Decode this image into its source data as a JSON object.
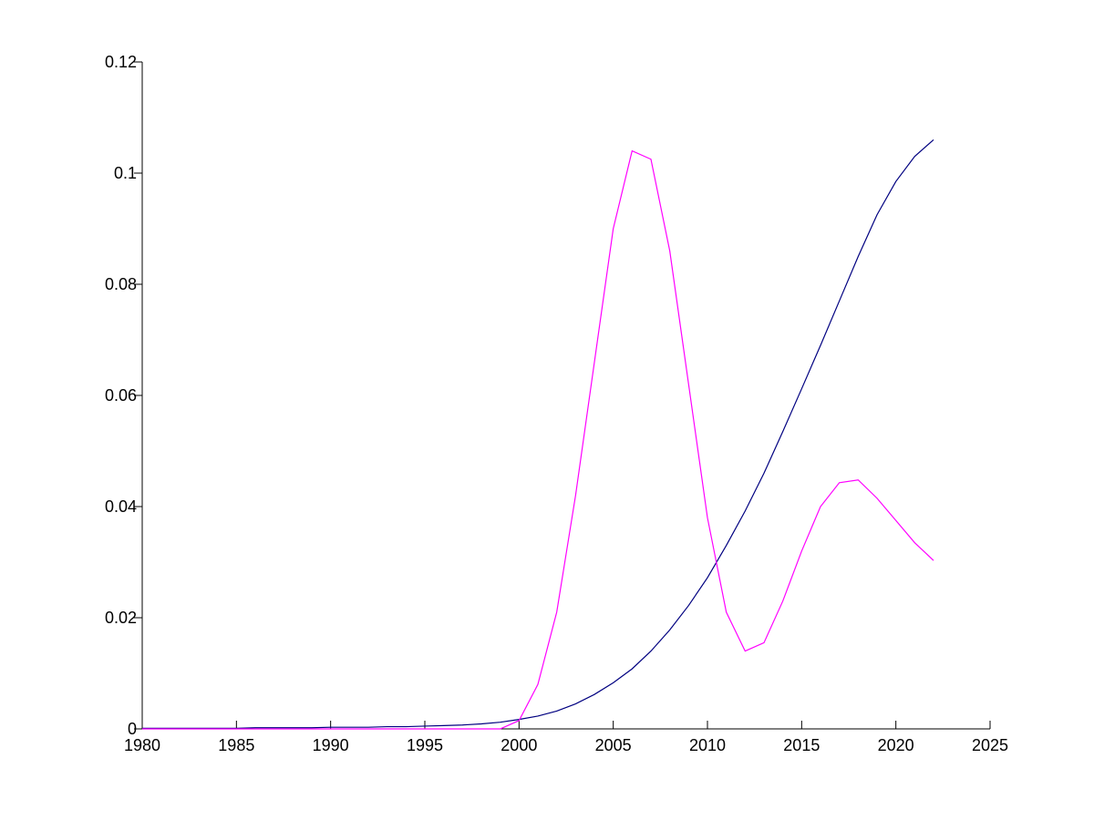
{
  "chart_data": {
    "type": "line",
    "x": [
      1980,
      1981,
      1982,
      1983,
      1984,
      1985,
      1986,
      1987,
      1988,
      1989,
      1990,
      1991,
      1992,
      1993,
      1994,
      1995,
      1996,
      1997,
      1998,
      1999,
      2000,
      2001,
      2002,
      2003,
      2004,
      2005,
      2006,
      2007,
      2008,
      2009,
      2010,
      2011,
      2012,
      2013,
      2014,
      2015,
      2016,
      2017,
      2018,
      2019,
      2020,
      2021,
      2022
    ],
    "series": [
      {
        "color": "#000080",
        "values": [
          0.0001,
          0.0001,
          0.0001,
          0.0001,
          0.0001,
          0.0001,
          0.0002,
          0.0002,
          0.0002,
          0.0002,
          0.0003,
          0.0003,
          0.0003,
          0.0004,
          0.0004,
          0.0005,
          0.0006,
          0.0007,
          0.0009,
          0.0012,
          0.0017,
          0.0023,
          0.0032,
          0.0045,
          0.0062,
          0.0083,
          0.0108,
          0.014,
          0.0178,
          0.0222,
          0.0272,
          0.033,
          0.0392,
          0.046,
          0.0535,
          0.0612,
          0.069,
          0.077,
          0.085,
          0.0925,
          0.0985,
          0.103,
          0.106
        ]
      },
      {
        "color": "#ff00ff",
        "values": [
          0,
          0,
          0,
          0,
          0,
          0,
          0,
          0,
          0,
          0,
          0,
          0,
          0,
          0,
          0,
          0,
          0,
          0,
          0,
          0,
          0.0015,
          0.008,
          0.021,
          0.042,
          0.066,
          0.09,
          0.104,
          0.1025,
          0.086,
          0.062,
          0.038,
          0.021,
          0.014,
          0.0155,
          0.023,
          0.032,
          0.04,
          0.0443,
          0.0448,
          0.0415,
          0.0375,
          0.0335,
          0.0303
        ]
      }
    ],
    "xlim": [
      1980,
      2025
    ],
    "xticks": [
      1980,
      1985,
      1990,
      1995,
      2000,
      2005,
      2010,
      2015,
      2020,
      2025
    ],
    "ylim": [
      0,
      0.12
    ],
    "yticks": [
      0,
      0.02,
      0.04,
      0.06,
      0.08,
      0.1,
      0.12
    ]
  }
}
